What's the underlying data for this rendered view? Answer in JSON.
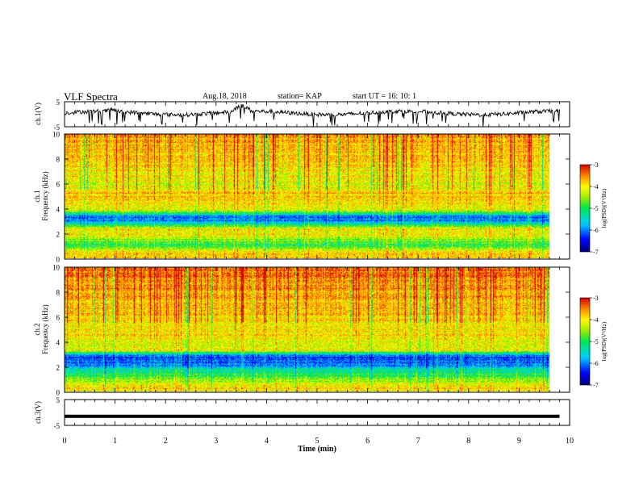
{
  "header": {
    "title": "VLF Spectra",
    "date": "Aug.18, 2018",
    "station": "station= KAP",
    "start": "start  UT =   16: 10: 1"
  },
  "chart_data": [
    {
      "type": "line",
      "id": "ch1-waveform",
      "ylabel": "ch.1(V)",
      "ylim": [
        -5,
        5
      ],
      "yticks": [
        "5",
        "-5"
      ],
      "xlim": [
        0,
        10
      ],
      "data_end_min": 9.8,
      "grid": false,
      "series": [
        {
          "color": "#000000",
          "baseline": 0.5,
          "noise_amp": 1.6,
          "bumps": [
            {
              "from": 3.3,
              "to": 3.7,
              "level": 3.3
            },
            {
              "from": 0.8,
              "to": 1.1,
              "level": 1.8
            }
          ]
        }
      ]
    },
    {
      "type": "heatmap",
      "id": "ch1-spectrogram",
      "ylabel_lines": [
        "ch.1",
        "Frequency (kHz)"
      ],
      "ylim": [
        0,
        10
      ],
      "yticks": [
        "0",
        "2",
        "4",
        "6",
        "8",
        "10"
      ],
      "xlim": [
        0,
        10
      ],
      "data_end_min": 9.8,
      "colorbar": {
        "label": "log(PSD)(V²/Hz)",
        "range": [
          -7,
          -3
        ],
        "ticks": [
          "-3",
          "-4",
          "-5",
          "-6",
          "-7"
        ]
      },
      "bands": [
        {
          "f": 0.3,
          "v": -3.8
        },
        {
          "f": 0.6,
          "v": -4.2
        },
        {
          "f": 1.1,
          "v": -5.0
        },
        {
          "f": 1.9,
          "v": -4.0
        },
        {
          "f": 2.3,
          "v": -4.0
        },
        {
          "f": 3.0,
          "v": -6.0
        },
        {
          "f": 3.4,
          "v": -6.0
        },
        {
          "f": 3.8,
          "v": -4.3
        },
        {
          "f": 4.8,
          "v": -3.9
        },
        {
          "f": 5.3,
          "v": -3.8
        },
        {
          "f": 5.6,
          "v": -4.2
        }
      ]
    },
    {
      "type": "heatmap",
      "id": "ch2-spectrogram",
      "ylabel_lines": [
        "ch.2",
        "Frequency (kHz)"
      ],
      "ylim": [
        0,
        10
      ],
      "yticks": [
        "0",
        "2",
        "4",
        "6",
        "8",
        "10"
      ],
      "xlim": [
        0,
        10
      ],
      "data_end_min": 9.8,
      "colorbar": {
        "label": "log(PSD)(V²/Hz)",
        "range": [
          -7,
          -3
        ],
        "ticks": [
          "-3",
          "-4",
          "-5",
          "-6",
          "-7"
        ]
      },
      "bands": [
        {
          "f": 0.3,
          "v": -4.0
        },
        {
          "f": 0.8,
          "v": -4.5
        },
        {
          "f": 1.6,
          "v": -5.2
        },
        {
          "f": 2.3,
          "v": -6.2
        },
        {
          "f": 2.9,
          "v": -6.2
        },
        {
          "f": 3.3,
          "v": -4.0
        },
        {
          "f": 3.8,
          "v": -4.3
        },
        {
          "f": 4.3,
          "v": -4.0
        },
        {
          "f": 4.6,
          "v": -3.9
        },
        {
          "f": 5.0,
          "v": -4.0
        }
      ]
    },
    {
      "type": "line",
      "id": "ch3-waveform",
      "ylabel": "ch.3(V)",
      "ylim": [
        -5,
        5
      ],
      "yticks": [
        "5",
        "-5"
      ],
      "xlim": [
        0,
        10
      ],
      "data_end_min": 9.8,
      "xlabel": "Time (min)",
      "xticks": [
        "0",
        "1",
        "2",
        "3",
        "4",
        "5",
        "6",
        "7",
        "8",
        "9",
        "10"
      ],
      "grid": false,
      "series": [
        {
          "color": "#000000",
          "constant": -1.5
        }
      ]
    }
  ]
}
